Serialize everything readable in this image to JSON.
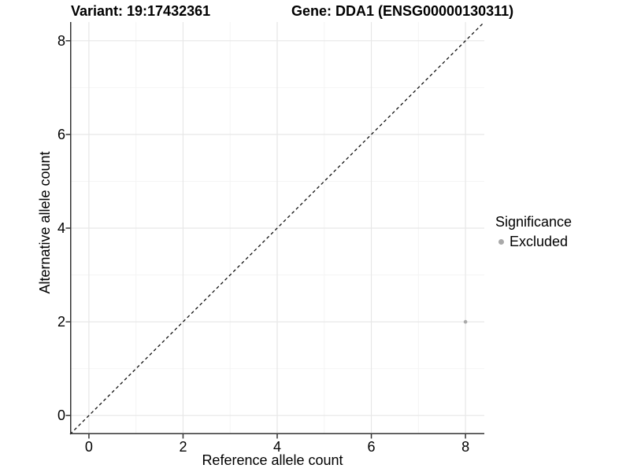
{
  "page": {
    "title_variant": "Variant: 19:17432361",
    "title_gene": "Gene: DDA1 (ENSG00000130311)"
  },
  "legend": {
    "title": "Significance",
    "items": [
      {
        "label": "Excluded",
        "color": "#a9a9a9"
      }
    ]
  },
  "chart_data": {
    "type": "scatter",
    "title": "Variant: 19:17432361   Gene: DDA1 (ENSG00000130311)",
    "xlabel": "Reference allele count",
    "ylabel": "Alternative allele count",
    "xlim": [
      -0.4,
      8.4
    ],
    "ylim": [
      -0.4,
      8.4
    ],
    "x_ticks": [
      0,
      2,
      4,
      6,
      8
    ],
    "y_ticks": [
      0,
      2,
      4,
      6,
      8
    ],
    "x_tick_labels": [
      "0",
      "2",
      "4",
      "6",
      "8"
    ],
    "y_tick_labels": [
      "0",
      "2",
      "4",
      "6",
      "8"
    ],
    "x_minor_ticks": [
      1,
      3,
      5,
      7
    ],
    "y_minor_ticks": [
      1,
      3,
      5,
      7
    ],
    "grid": true,
    "legend_position": "right",
    "series": [
      {
        "name": "Excluded",
        "points": [
          {
            "x": 8,
            "y": 2
          }
        ],
        "color": "#a9a9a9"
      }
    ],
    "reference_line": {
      "type": "identity",
      "style": "dashed",
      "x1": -0.4,
      "y1": -0.4,
      "x2": 8.4,
      "y2": 8.4,
      "color": "#000000"
    },
    "colors": {
      "point": "#a9a9a9",
      "grid_major": "#e7e7e7",
      "grid_minor": "#f4f4f4",
      "axis_line": "#333333",
      "diagonal": "#111111",
      "text": "#000000"
    }
  }
}
